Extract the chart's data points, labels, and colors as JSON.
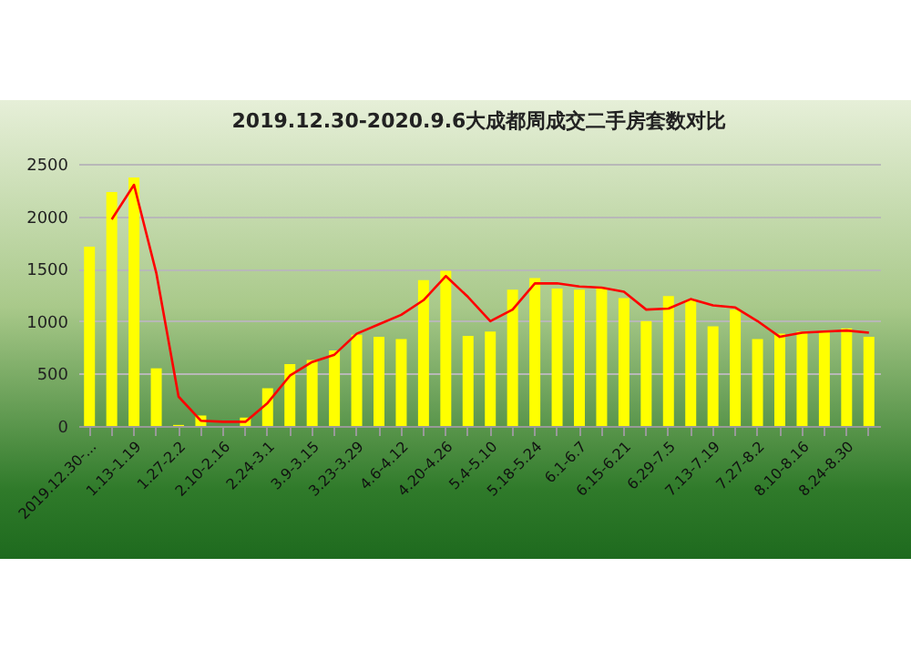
{
  "chart_data": {
    "type": "bar",
    "title": "2019.12.30-2020.9.6大成都周成交二手房套数对比",
    "categories": [
      "2019.12.30-...",
      null,
      "1.13-1.19",
      null,
      "1.27-2.2",
      null,
      "2.10-2.16",
      null,
      "2.24-3.1",
      null,
      "3.9-3.15",
      null,
      "3.23-3.29",
      null,
      "4.6-4.12",
      null,
      "4.20-4.26",
      null,
      "5.4-5.10",
      null,
      "5.18-5.24",
      null,
      "6.1-6.7",
      null,
      "6.15-6.21",
      null,
      "6.29-7.5",
      null,
      "7.13-7.19",
      null,
      "7.27-8.2",
      null,
      "8.10-8.16",
      null,
      "8.24-8.30",
      null
    ],
    "series": [
      {
        "color": "#ffff00",
        "values": [
          1710,
          2230,
          2370,
          550,
          10,
          100,
          0,
          80,
          360,
          590,
          630,
          720,
          870,
          850,
          830,
          1390,
          1480,
          860,
          900,
          1300,
          1410,
          1310,
          1300,
          1310,
          1220,
          1000,
          1240,
          1200,
          950,
          1110,
          830,
          880,
          900,
          900,
          930,
          850
        ]
      },
      {
        "type": "line",
        "color": "#ff0000",
        "values": [
          null,
          1970,
          2300,
          1460,
          280,
          50,
          40,
          40,
          220,
          480,
          610,
          680,
          880,
          970,
          1060,
          1200,
          1430,
          1230,
          1000,
          1110,
          1360,
          1360,
          1330,
          1320,
          1280,
          1110,
          1120,
          1210,
          1150,
          1130,
          1000,
          850,
          890,
          900,
          910,
          890
        ]
      }
    ],
    "ylim": [
      0,
      2500
    ],
    "yticks": [
      0,
      500,
      1000,
      1500,
      2000,
      2500
    ],
    "grid": "y"
  }
}
